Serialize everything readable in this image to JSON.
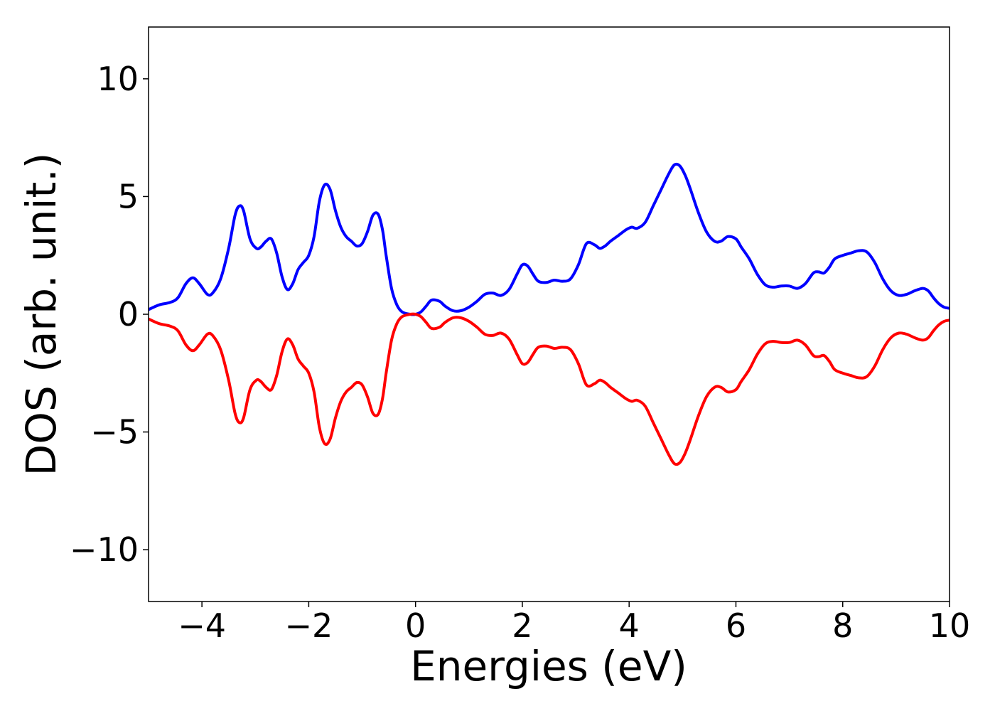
{
  "chart_data": {
    "type": "line",
    "title": "",
    "xlabel": "Energies (eV)",
    "ylabel": "DOS (arb. unit.)",
    "xlim": [
      -5,
      10
    ],
    "ylim": [
      -12.2,
      12.2
    ],
    "xticks": [
      -4,
      -2,
      0,
      2,
      4,
      6,
      8,
      10
    ],
    "xtick_labels": [
      "−4",
      "−2",
      "0",
      "2",
      "4",
      "6",
      "8",
      "10"
    ],
    "yticks": [
      -10,
      -5,
      0,
      5,
      10
    ],
    "ytick_labels": [
      "−10",
      "−5",
      "0",
      "5",
      "10"
    ],
    "grid": false,
    "legend": "none",
    "series": [
      {
        "color": "#0000ff",
        "x": [
          -5.0,
          -4.8,
          -4.6,
          -4.45,
          -4.3,
          -4.17,
          -4.05,
          -3.9,
          -3.8,
          -3.65,
          -3.5,
          -3.38,
          -3.3,
          -3.22,
          -3.1,
          -2.98,
          -2.9,
          -2.8,
          -2.7,
          -2.6,
          -2.5,
          -2.4,
          -2.3,
          -2.2,
          -2.1,
          -2.0,
          -1.9,
          -1.8,
          -1.7,
          -1.6,
          -1.5,
          -1.4,
          -1.3,
          -1.2,
          -1.1,
          -1.0,
          -0.9,
          -0.8,
          -0.7,
          -0.62,
          -0.55,
          -0.45,
          -0.35,
          -0.25,
          -0.1,
          0.0,
          0.1,
          0.2,
          0.3,
          0.45,
          0.55,
          0.7,
          0.85,
          1.0,
          1.15,
          1.3,
          1.45,
          1.6,
          1.75,
          1.9,
          2.0,
          2.1,
          2.2,
          2.3,
          2.45,
          2.6,
          2.75,
          2.9,
          3.05,
          3.2,
          3.35,
          3.45,
          3.55,
          3.65,
          3.8,
          3.95,
          4.05,
          4.15,
          4.3,
          4.45,
          4.6,
          4.75,
          4.85,
          4.95,
          5.05,
          5.15,
          5.3,
          5.45,
          5.6,
          5.72,
          5.85,
          6.0,
          6.1,
          6.25,
          6.4,
          6.55,
          6.7,
          6.85,
          7.0,
          7.15,
          7.3,
          7.45,
          7.55,
          7.65,
          7.75,
          7.85,
          8.0,
          8.15,
          8.3,
          8.45,
          8.6,
          8.75,
          8.9,
          9.05,
          9.2,
          9.35,
          9.5,
          9.6,
          9.7,
          9.8,
          9.9,
          10.0
        ],
        "y": [
          0.2,
          0.4,
          0.5,
          0.7,
          1.3,
          1.55,
          1.3,
          0.85,
          0.9,
          1.5,
          2.8,
          4.2,
          4.6,
          4.4,
          3.2,
          2.8,
          2.85,
          3.1,
          3.2,
          2.6,
          1.6,
          1.05,
          1.3,
          1.9,
          2.2,
          2.5,
          3.3,
          4.8,
          5.5,
          5.3,
          4.4,
          3.7,
          3.3,
          3.1,
          2.9,
          3.0,
          3.5,
          4.2,
          4.25,
          3.6,
          2.5,
          1.1,
          0.4,
          0.1,
          0.0,
          0.0,
          0.1,
          0.35,
          0.6,
          0.55,
          0.35,
          0.15,
          0.15,
          0.3,
          0.55,
          0.85,
          0.9,
          0.8,
          1.05,
          1.7,
          2.1,
          2.05,
          1.7,
          1.4,
          1.35,
          1.45,
          1.4,
          1.5,
          2.1,
          3.0,
          2.95,
          2.8,
          2.9,
          3.1,
          3.35,
          3.6,
          3.7,
          3.65,
          3.9,
          4.6,
          5.3,
          6.0,
          6.35,
          6.3,
          5.9,
          5.3,
          4.3,
          3.5,
          3.1,
          3.1,
          3.3,
          3.2,
          2.85,
          2.35,
          1.7,
          1.25,
          1.15,
          1.2,
          1.2,
          1.1,
          1.3,
          1.75,
          1.8,
          1.75,
          2.0,
          2.35,
          2.5,
          2.6,
          2.7,
          2.65,
          2.2,
          1.5,
          1.0,
          0.8,
          0.85,
          1.0,
          1.1,
          1.0,
          0.7,
          0.45,
          0.3,
          0.25
        ]
      },
      {
        "color": "#ff0000",
        "x": [
          -5.0,
          -4.8,
          -4.6,
          -4.45,
          -4.3,
          -4.17,
          -4.05,
          -3.9,
          -3.8,
          -3.65,
          -3.5,
          -3.38,
          -3.3,
          -3.22,
          -3.1,
          -2.98,
          -2.9,
          -2.8,
          -2.7,
          -2.6,
          -2.5,
          -2.4,
          -2.3,
          -2.2,
          -2.1,
          -2.0,
          -1.9,
          -1.8,
          -1.7,
          -1.6,
          -1.5,
          -1.4,
          -1.3,
          -1.2,
          -1.1,
          -1.0,
          -0.9,
          -0.8,
          -0.7,
          -0.62,
          -0.55,
          -0.45,
          -0.35,
          -0.25,
          -0.1,
          0.0,
          0.1,
          0.2,
          0.3,
          0.45,
          0.55,
          0.7,
          0.85,
          1.0,
          1.15,
          1.3,
          1.45,
          1.6,
          1.75,
          1.9,
          2.0,
          2.1,
          2.2,
          2.3,
          2.45,
          2.6,
          2.75,
          2.9,
          3.05,
          3.2,
          3.35,
          3.45,
          3.55,
          3.65,
          3.8,
          3.95,
          4.05,
          4.15,
          4.3,
          4.45,
          4.6,
          4.75,
          4.85,
          4.95,
          5.05,
          5.15,
          5.3,
          5.45,
          5.6,
          5.72,
          5.85,
          6.0,
          6.1,
          6.25,
          6.4,
          6.55,
          6.7,
          6.85,
          7.0,
          7.15,
          7.3,
          7.45,
          7.55,
          7.65,
          7.75,
          7.85,
          8.0,
          8.15,
          8.3,
          8.45,
          8.6,
          8.75,
          8.9,
          9.05,
          9.2,
          9.35,
          9.5,
          9.6,
          9.7,
          9.8,
          9.9,
          10.0
        ],
        "y": [
          -0.2,
          -0.4,
          -0.5,
          -0.7,
          -1.3,
          -1.55,
          -1.3,
          -0.85,
          -0.9,
          -1.5,
          -2.8,
          -4.2,
          -4.6,
          -4.4,
          -3.2,
          -2.8,
          -2.85,
          -3.1,
          -3.2,
          -2.6,
          -1.6,
          -1.05,
          -1.3,
          -1.9,
          -2.2,
          -2.5,
          -3.3,
          -4.8,
          -5.5,
          -5.3,
          -4.4,
          -3.7,
          -3.3,
          -3.1,
          -2.9,
          -3.0,
          -3.5,
          -4.2,
          -4.25,
          -3.6,
          -2.5,
          -1.1,
          -0.4,
          -0.1,
          0.0,
          0.0,
          -0.1,
          -0.35,
          -0.6,
          -0.55,
          -0.35,
          -0.15,
          -0.15,
          -0.3,
          -0.55,
          -0.85,
          -0.9,
          -0.8,
          -1.05,
          -1.7,
          -2.1,
          -2.05,
          -1.7,
          -1.4,
          -1.35,
          -1.45,
          -1.4,
          -1.5,
          -2.1,
          -3.0,
          -2.95,
          -2.8,
          -2.9,
          -3.1,
          -3.35,
          -3.6,
          -3.7,
          -3.65,
          -3.9,
          -4.6,
          -5.3,
          -6.0,
          -6.35,
          -6.3,
          -5.9,
          -5.3,
          -4.3,
          -3.5,
          -3.1,
          -3.1,
          -3.3,
          -3.2,
          -2.85,
          -2.35,
          -1.7,
          -1.25,
          -1.15,
          -1.2,
          -1.2,
          -1.1,
          -1.3,
          -1.75,
          -1.8,
          -1.75,
          -2.0,
          -2.35,
          -2.5,
          -2.6,
          -2.7,
          -2.65,
          -2.2,
          -1.5,
          -1.0,
          -0.8,
          -0.85,
          -1.0,
          -1.1,
          -1.0,
          -0.7,
          -0.45,
          -0.3,
          -0.25
        ]
      }
    ]
  }
}
